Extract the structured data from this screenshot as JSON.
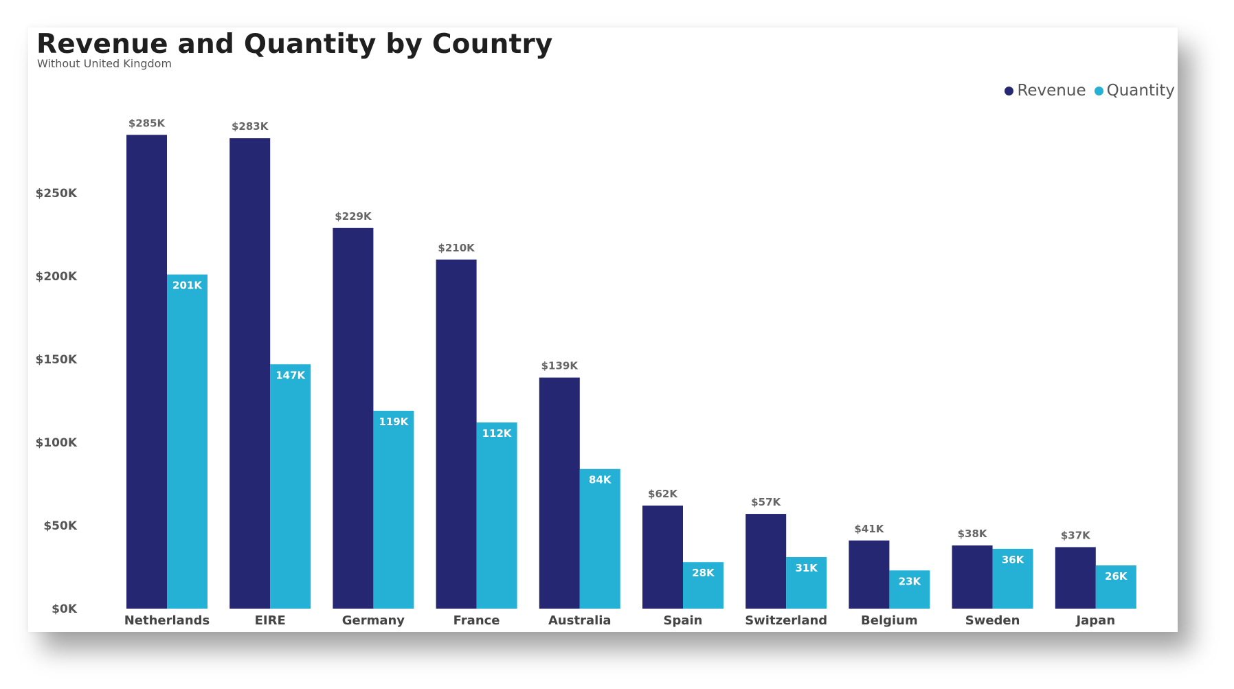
{
  "chart_data": {
    "type": "bar",
    "title": "Revenue and Quantity by Country",
    "subtitle": "Without United Kingdom",
    "categories": [
      "Netherlands",
      "EIRE",
      "Germany",
      "France",
      "Australia",
      "Spain",
      "Switzerland",
      "Belgium",
      "Sweden",
      "Japan"
    ],
    "series": [
      {
        "name": "Revenue",
        "color": "#252772",
        "values": [
          285000,
          283000,
          229000,
          210000,
          139000,
          62000,
          57000,
          41000,
          38000,
          37000
        ],
        "labels": [
          "$285K",
          "$283K",
          "$229K",
          "$210K",
          "$139K",
          "$62K",
          "$57K",
          "$41K",
          "$38K",
          "$37K"
        ]
      },
      {
        "name": "Quantity",
        "color": "#25b0d5",
        "values": [
          201000,
          147000,
          119000,
          112000,
          84000,
          28000,
          31000,
          23000,
          36000,
          26000
        ],
        "labels": [
          "201K",
          "147K",
          "119K",
          "112K",
          "84K",
          "28K",
          "31K",
          "23K",
          "36K",
          "26K"
        ]
      }
    ],
    "y_ticks": [
      0,
      50000,
      100000,
      150000,
      200000,
      250000
    ],
    "y_tick_labels": [
      "$0K",
      "$50K",
      "$100K",
      "$150K",
      "$200K",
      "$250K"
    ],
    "ylim": [
      0,
      300000
    ],
    "grid": false,
    "legend_position": "top-right"
  }
}
